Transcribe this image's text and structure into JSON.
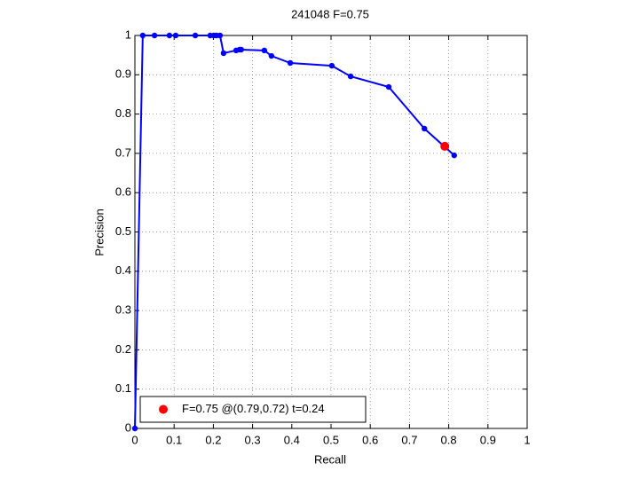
{
  "chart_data": {
    "type": "line",
    "title": "241048 F=0.75",
    "x_label": "Recall",
    "y_label": "Precision",
    "series": [
      {
        "color": "#0000ff",
        "x": [
          0,
          0.02,
          0.05,
          0.088,
          0.104,
          0.154,
          0.192,
          0.201,
          0.208,
          0.217,
          0.226,
          0.258,
          0.267,
          0.271,
          0.33,
          0.348,
          0.396,
          0.502,
          0.55,
          0.647,
          0.738,
          0.814
        ],
        "values": [
          0,
          1,
          1,
          1,
          1,
          1,
          1,
          1,
          1,
          1,
          0.955,
          0.962,
          0.964,
          0.964,
          0.962,
          0.948,
          0.93,
          0.923,
          0.896,
          0.869,
          0.763,
          0.695
        ]
      },
      {
        "name": "F=0.75 @(0.79,0.72) t=0.24",
        "color": "#ff0000",
        "x": [
          0.79
        ],
        "values": [
          0.718
        ]
      }
    ],
    "xlim": [
      0,
      1
    ],
    "ylim": [
      0,
      1
    ],
    "xticks": [
      0,
      0.1,
      0.2,
      0.3,
      0.4,
      0.5,
      0.6,
      0.7,
      0.8,
      0.9,
      1
    ],
    "yticks": [
      0,
      0.1,
      0.2,
      0.3,
      0.4,
      0.5,
      0.6,
      0.7,
      0.8,
      0.9,
      1
    ],
    "grid": true,
    "legend_position": "lower left"
  }
}
